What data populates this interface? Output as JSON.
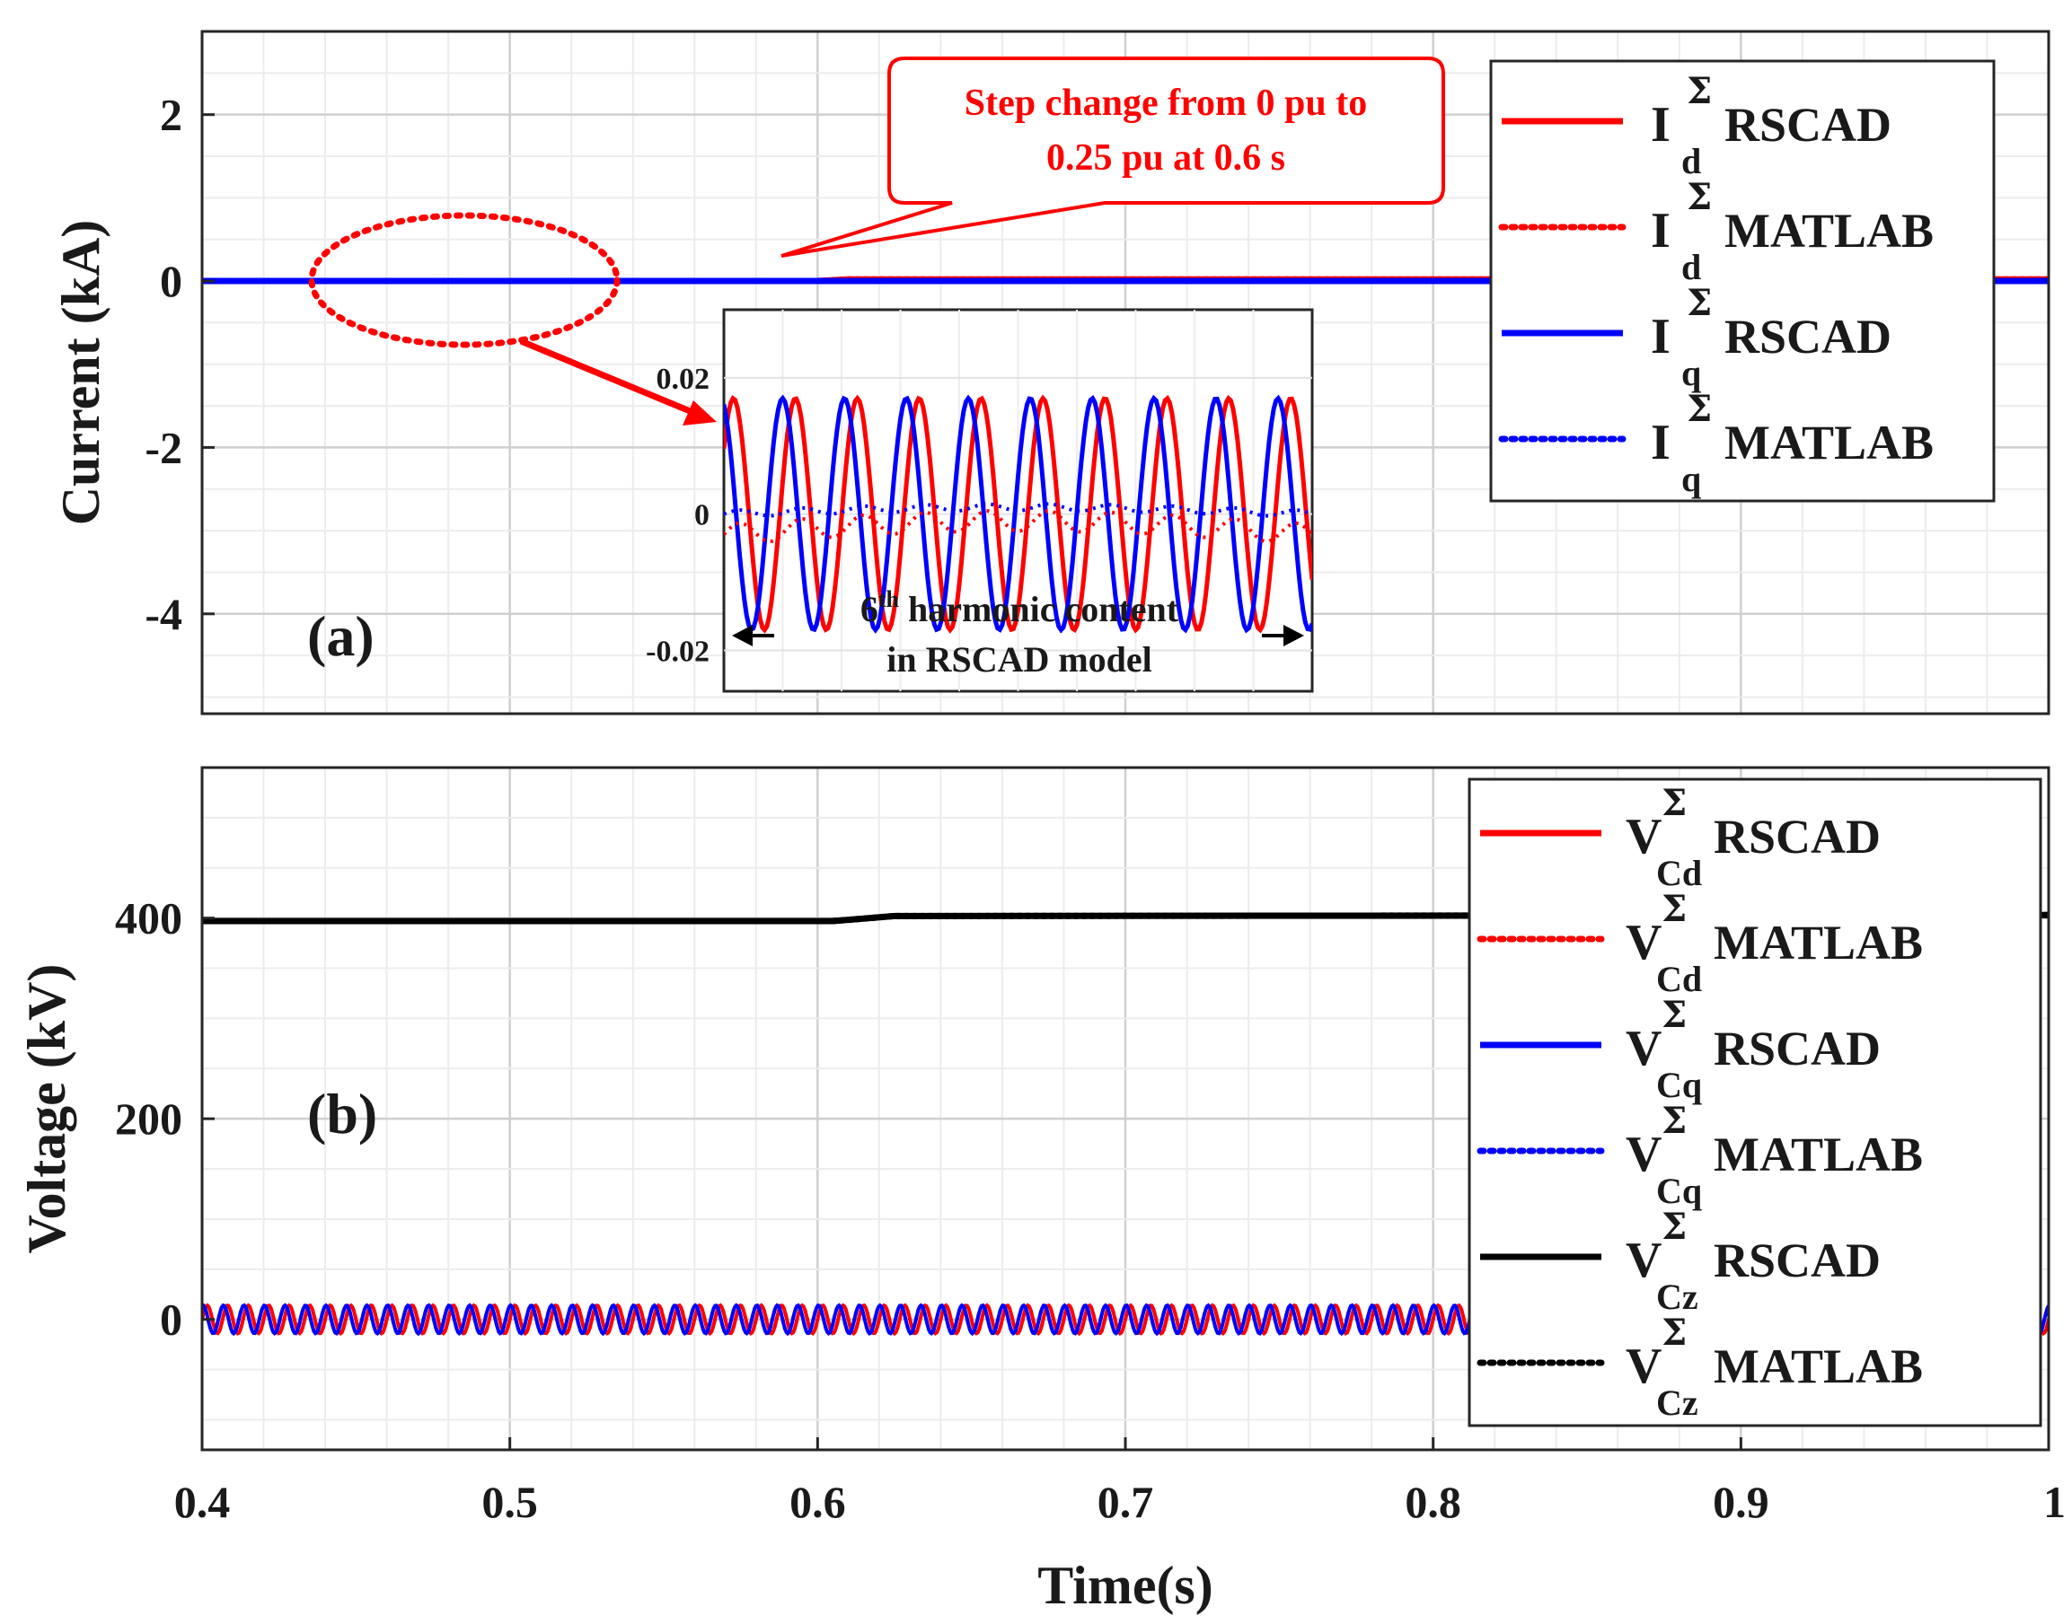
{
  "colors": {
    "red": "#ff0000",
    "blue": "#0000ff",
    "black": "#000000",
    "grid": "#d9d9d9"
  },
  "chart_data": [
    {
      "type": "line",
      "panel_label": "(a)",
      "ylabel": "Current (kA)",
      "xlabel": "Time(s)",
      "xlim": [
        0.4,
        1.0
      ],
      "ylim": [
        -5.2,
        3.0
      ],
      "yticks": [
        "2",
        "0",
        "-2",
        "-4"
      ],
      "ytick_values": [
        2,
        0,
        -2,
        -4
      ],
      "xticks": [
        "0.4",
        "0.5",
        "0.6",
        "0.7",
        "0.8",
        "0.9",
        "1"
      ],
      "xtick_values": [
        0.4,
        0.5,
        0.6,
        0.7,
        0.8,
        0.9,
        1.0
      ],
      "grid": true,
      "legend_position": "top-right",
      "series": [
        {
          "sym": "I",
          "sup": "Σ",
          "sub": "d",
          "label": "RSCAD",
          "color": "#ff0000",
          "style": "solid",
          "x": [
            0.4,
            0.6,
            0.61,
            1.0
          ],
          "values": [
            0,
            0,
            0.02,
            0.02
          ]
        },
        {
          "sym": "I",
          "sup": "Σ",
          "sub": "d",
          "label": "MATLAB",
          "color": "#ff0000",
          "style": "dotted",
          "x": [
            0.4,
            0.6,
            0.61,
            1.0
          ],
          "values": [
            0,
            0,
            0.02,
            0.02
          ]
        },
        {
          "sym": "I",
          "sup": "Σ",
          "sub": "q",
          "label": "RSCAD",
          "color": "#0000ff",
          "style": "solid",
          "x": [
            0.4,
            1.0
          ],
          "values": [
            0,
            0
          ]
        },
        {
          "sym": "I",
          "sup": "Σ",
          "sub": "q",
          "label": "MATLAB",
          "color": "#0000ff",
          "style": "dotted",
          "x": [
            0.4,
            1.0
          ],
          "values": [
            0,
            0
          ]
        }
      ],
      "annotation": {
        "line1": "Step change from 0 pu to",
        "line2": "0.25 pu at 0.6 s"
      },
      "inset": {
        "yticks": [
          "0.02",
          "0",
          "-0.02"
        ],
        "ytick_values": [
          0.02,
          0,
          -0.02
        ],
        "ylim": [
          -0.026,
          0.03
        ],
        "harmonic_cycles": 9.5,
        "amplitude": 0.017,
        "note_line1_num": "6",
        "note_line1_sup": "th",
        "note_line1_rest": " harmonic content",
        "note_line2": "in RSCAD model"
      }
    },
    {
      "type": "line",
      "panel_label": "(b)",
      "ylabel": "Voltage (kV)",
      "xlabel": "Time(s)",
      "xlim": [
        0.4,
        1.0
      ],
      "ylim": [
        -130,
        550
      ],
      "yticks": [
        "400",
        "200",
        "0"
      ],
      "ytick_values": [
        400,
        200,
        0
      ],
      "xticks": [
        "0.4",
        "0.5",
        "0.6",
        "0.7",
        "0.8",
        "0.9",
        "1"
      ],
      "xtick_values": [
        0.4,
        0.5,
        0.6,
        0.7,
        0.8,
        0.9,
        1.0
      ],
      "grid": true,
      "legend_position": "top-right",
      "series": [
        {
          "sym": "V",
          "sup": "Σ",
          "sub": "Cd",
          "label": "RSCAD",
          "color": "#ff0000",
          "style": "solid",
          "ripple": 14,
          "center": 0
        },
        {
          "sym": "V",
          "sup": "Σ",
          "sub": "Cd",
          "label": "MATLAB",
          "color": "#ff0000",
          "style": "dotted",
          "ripple": 14,
          "center": 0
        },
        {
          "sym": "V",
          "sup": "Σ",
          "sub": "Cq",
          "label": "RSCAD",
          "color": "#0000ff",
          "style": "solid",
          "ripple": 14,
          "center": 0
        },
        {
          "sym": "V",
          "sup": "Σ",
          "sub": "Cq",
          "label": "MATLAB",
          "color": "#0000ff",
          "style": "dotted",
          "ripple": 14,
          "center": 0
        },
        {
          "sym": "V",
          "sup": "Σ",
          "sub": "Cz",
          "label": "RSCAD",
          "color": "#000000",
          "style": "solid",
          "x": [
            0.4,
            0.605,
            0.625,
            1.0
          ],
          "values": [
            397,
            397,
            402,
            403
          ]
        },
        {
          "sym": "V",
          "sup": "Σ",
          "sub": "Cz",
          "label": "MATLAB",
          "color": "#000000",
          "style": "dotted",
          "x": [
            0.4,
            0.605,
            0.625,
            1.0
          ],
          "values": [
            397,
            397,
            402,
            403
          ]
        }
      ]
    }
  ]
}
